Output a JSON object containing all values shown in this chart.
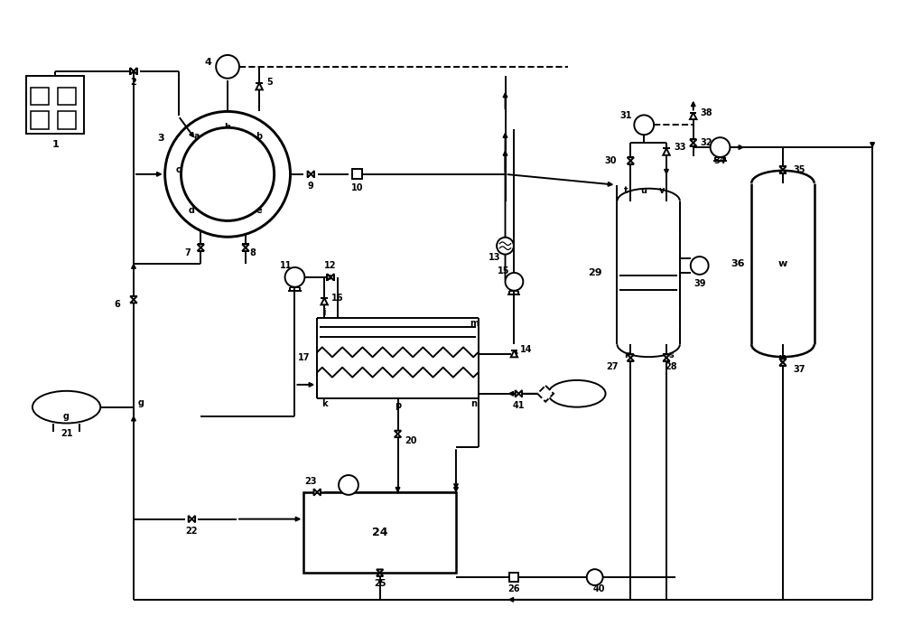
{
  "bg": "#ffffff",
  "lc": "#000000",
  "lw": 1.4,
  "fs": [
    10.0,
    7.03
  ],
  "dpi": 100,
  "xlim": [
    0,
    100
  ],
  "ylim": [
    0,
    70
  ]
}
